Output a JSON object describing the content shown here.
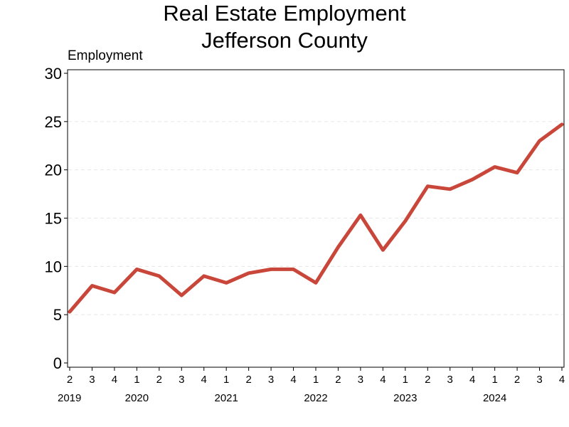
{
  "chart_data": {
    "type": "line",
    "title": "Real Estate Employment",
    "subtitle": "Jefferson County",
    "ylabel": "Employment",
    "xlabel": "",
    "ylim": [
      0,
      30
    ],
    "yticks": [
      0,
      5,
      10,
      15,
      20,
      25,
      30
    ],
    "grid": true,
    "line_color": "#c9473a",
    "x": [
      {
        "year": "2019",
        "quarter": "2"
      },
      {
        "year": "2019",
        "quarter": "3"
      },
      {
        "year": "2019",
        "quarter": "4"
      },
      {
        "year": "2020",
        "quarter": "1"
      },
      {
        "year": "2020",
        "quarter": "2"
      },
      {
        "year": "2020",
        "quarter": "3"
      },
      {
        "year": "2020",
        "quarter": "4"
      },
      {
        "year": "2021",
        "quarter": "1"
      },
      {
        "year": "2021",
        "quarter": "2"
      },
      {
        "year": "2021",
        "quarter": "3"
      },
      {
        "year": "2021",
        "quarter": "4"
      },
      {
        "year": "2022",
        "quarter": "1"
      },
      {
        "year": "2022",
        "quarter": "2"
      },
      {
        "year": "2022",
        "quarter": "3"
      },
      {
        "year": "2022",
        "quarter": "4"
      },
      {
        "year": "2023",
        "quarter": "1"
      },
      {
        "year": "2023",
        "quarter": "2"
      },
      {
        "year": "2023",
        "quarter": "3"
      },
      {
        "year": "2023",
        "quarter": "4"
      },
      {
        "year": "2024",
        "quarter": "1"
      },
      {
        "year": "2024",
        "quarter": "2"
      },
      {
        "year": "2024",
        "quarter": "3"
      },
      {
        "year": "2024",
        "quarter": "4"
      }
    ],
    "series": [
      {
        "values": [
          5.3,
          8.0,
          7.3,
          9.7,
          9.0,
          7.0,
          9.0,
          8.3,
          9.3,
          9.7,
          9.7,
          8.3,
          12.0,
          15.3,
          11.7,
          14.7,
          18.3,
          18.0,
          19.0,
          20.3,
          19.7,
          23.0,
          24.7
        ]
      }
    ],
    "year_labels": [
      "2019",
      "2020",
      "2021",
      "2022",
      "2023",
      "2024"
    ]
  }
}
